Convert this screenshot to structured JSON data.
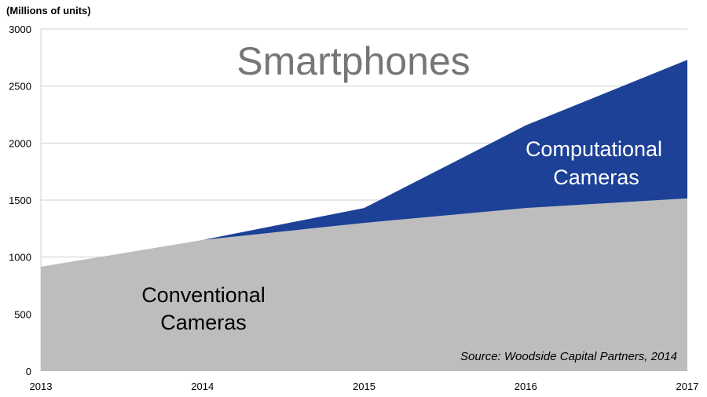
{
  "chart_data": {
    "type": "area",
    "stacked": true,
    "title": "Smartphones",
    "ylabel": "(Millions of units)",
    "xlabel": "",
    "x": [
      2013,
      2014,
      2015,
      2016,
      2017
    ],
    "ylim": [
      0,
      3000
    ],
    "yticks": [
      0,
      500,
      1000,
      1500,
      2000,
      2500,
      3000
    ],
    "grid": true,
    "series": [
      {
        "name": "Conventional Cameras",
        "values": [
          915,
          1150,
          1300,
          1430,
          1515
        ],
        "color": "#bdbdbd"
      },
      {
        "name": "Computational Cameras",
        "values": [
          0,
          0,
          130,
          725,
          1215
        ],
        "color": "#1c4196"
      }
    ],
    "annotations": {
      "conventional_line1": "Conventional",
      "conventional_line2": "Cameras",
      "computational_line1": "Computational",
      "computational_line2": "Cameras",
      "source": "Source: Woodside Capital Partners, 2014"
    }
  }
}
